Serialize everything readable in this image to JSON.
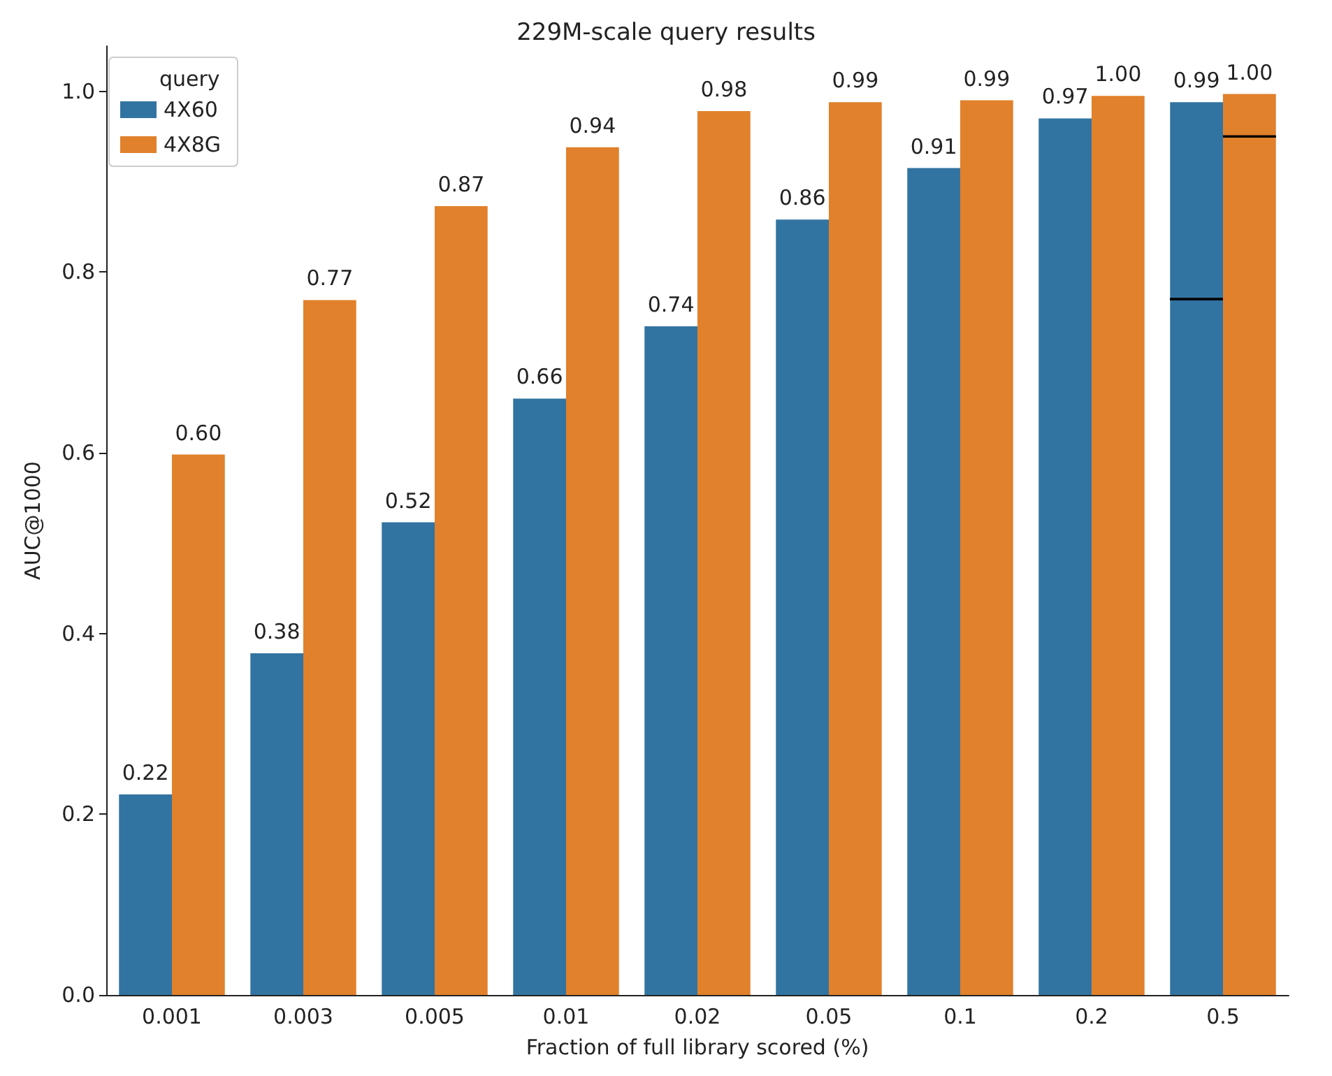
{
  "chart_data": {
    "type": "bar",
    "title": "229M-scale query results",
    "xlabel": "Fraction of full library scored (%)",
    "ylabel": "AUC@1000",
    "legend_title": "query",
    "legend": "top left",
    "grid": false,
    "categories": [
      "0.001",
      "0.003",
      "0.005",
      "0.01",
      "0.02",
      "0.05",
      "0.1",
      "0.2",
      "0.5"
    ],
    "series": [
      {
        "name": "4X60",
        "color": "#3274a1",
        "values": [
          0.222,
          0.378,
          0.523,
          0.66,
          0.74,
          0.858,
          0.915,
          0.97,
          0.988
        ],
        "value_labels": [
          "0.22",
          "0.38",
          "0.52",
          "0.66",
          "0.74",
          "0.86",
          "0.91",
          "0.97",
          "0.99"
        ],
        "errors": [
          null,
          null,
          null,
          null,
          null,
          null,
          null,
          null,
          [
            0.77,
            0.77
          ]
        ]
      },
      {
        "name": "4X8G",
        "color": "#e1812c",
        "values": [
          0.598,
          0.769,
          0.873,
          0.938,
          0.978,
          0.988,
          0.99,
          0.995,
          0.997
        ],
        "value_labels": [
          "0.60",
          "0.77",
          "0.87",
          "0.94",
          "0.98",
          "0.99",
          "0.99",
          "1.00",
          "1.00"
        ],
        "errors": [
          null,
          null,
          null,
          null,
          null,
          null,
          null,
          null,
          [
            0.95,
            0.95
          ]
        ]
      }
    ],
    "ylim": [
      0,
      1.05
    ],
    "yticks": [
      {
        "value": 0,
        "label": "0.0"
      },
      {
        "value": 0.2,
        "label": "0.2"
      },
      {
        "value": 0.4,
        "label": "0.4"
      },
      {
        "value": 0.6,
        "label": "0.6"
      },
      {
        "value": 0.8,
        "label": "0.8"
      },
      {
        "value": 1,
        "label": "1.0"
      }
    ]
  }
}
